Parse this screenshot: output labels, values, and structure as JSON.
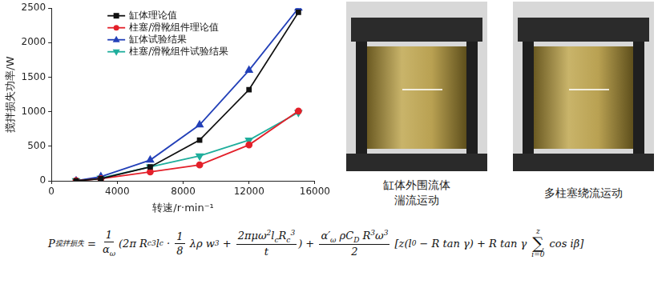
{
  "chart_data": {
    "type": "line",
    "x_label": "转速/r·min⁻¹",
    "y_label": "搅拌损失功率/W",
    "x": [
      1500,
      3000,
      6000,
      9000,
      12000,
      15000
    ],
    "series": [
      {
        "name": "缸体理论值",
        "color": "#111111",
        "marker": "square",
        "values": [
          0,
          30,
          200,
          590,
          1320,
          2440
        ]
      },
      {
        "name": "柱塞/滑靴组件理论值",
        "color": "#e3202a",
        "marker": "circle",
        "values": [
          0,
          30,
          130,
          230,
          520,
          1010
        ]
      },
      {
        "name": "缸体试验结果",
        "color": "#2340b8",
        "marker": "triangle",
        "values": [
          0,
          60,
          300,
          810,
          1600,
          2500
        ]
      },
      {
        "name": "柱塞/滑靴组件试验结果",
        "color": "#1fae9c",
        "marker": "triangle_down",
        "values": [
          0,
          40,
          200,
          360,
          590,
          990
        ]
      }
    ],
    "xlim": [
      0,
      16000
    ],
    "xticks": [
      0,
      4000,
      8000,
      12000,
      16000
    ],
    "ylim": [
      0,
      2500
    ],
    "yticks": [
      0,
      500,
      1000,
      1500,
      2000,
      2500
    ],
    "grid": false,
    "legend": "top-left"
  },
  "figures": [
    {
      "caption": [
        "缸体外围流体",
        "湍流运动"
      ]
    },
    {
      "caption": [
        "多柱塞绕流运动"
      ]
    }
  ],
  "formula": [
    {
      "t": "P"
    },
    {
      "sub": "搅拌损失"
    },
    {
      "t": " = "
    },
    {
      "frac": {
        "num": [
          {
            "t": "1"
          }
        ],
        "den": [
          {
            "t": "α"
          },
          {
            "sub": "ω"
          }
        ]
      }
    },
    {
      "t": "(2π R"
    },
    {
      "sub": "c"
    },
    {
      "sup": "3"
    },
    {
      "t": "l"
    },
    {
      "sub": "c"
    },
    {
      "t": " · "
    },
    {
      "frac": {
        "num": [
          {
            "t": "1"
          }
        ],
        "den": [
          {
            "t": "8"
          }
        ]
      }
    },
    {
      "t": " λρ w"
    },
    {
      "sup": "3"
    },
    {
      "t": " + "
    },
    {
      "frac": {
        "num": [
          {
            "t": "2πμω"
          },
          {
            "sup": "2"
          },
          {
            "t": "l"
          },
          {
            "sub": "c"
          },
          {
            "t": "R"
          },
          {
            "sub": "c"
          },
          {
            "sup": "3"
          }
        ],
        "den": [
          {
            "t": "t"
          }
        ]
      }
    },
    {
      "t": ") + "
    },
    {
      "frac": {
        "num": [
          {
            "t": "α′"
          },
          {
            "sub": "ω"
          },
          {
            "t": " ρC"
          },
          {
            "sub": "D"
          },
          {
            "t": " R"
          },
          {
            "sup": "3"
          },
          {
            "t": "ω"
          },
          {
            "sup": "3"
          }
        ],
        "den": [
          {
            "t": "2"
          }
        ]
      }
    },
    {
      "t": " [z(l"
    },
    {
      "sub": "0"
    },
    {
      "t": " − R tan γ) + R tan γ "
    },
    {
      "sum": {
        "upper": "z",
        "symbol": "∑",
        "lower": "i=0"
      }
    },
    {
      "t": " cos iβ]"
    }
  ]
}
